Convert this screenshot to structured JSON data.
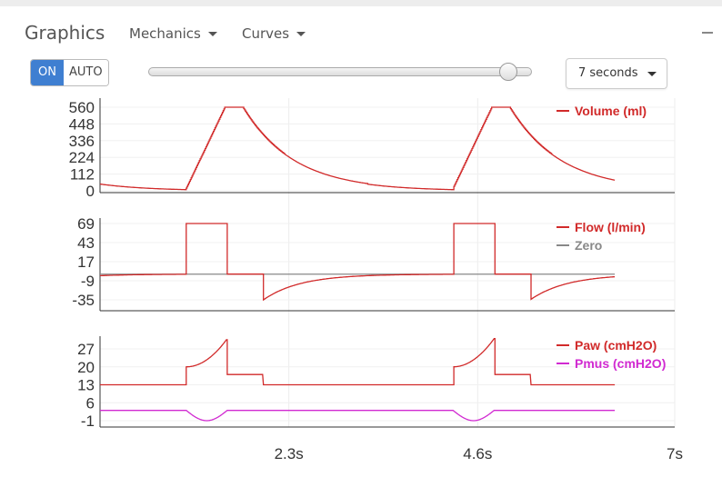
{
  "header": {
    "title": "Graphics",
    "menus": [
      "Mechanics",
      "Curves"
    ]
  },
  "controls": {
    "on_label": "ON",
    "auto_label": "AUTO",
    "slider_value_fraction": 0.94,
    "time_window": "7 seconds"
  },
  "colors": {
    "red": "#d12a2a",
    "gray": "#888888",
    "magenta": "#d12ad1",
    "on_button": "#3f7fd1"
  },
  "chart_data": [
    {
      "type": "line",
      "yticks": [
        560,
        448,
        336,
        224,
        112,
        0
      ],
      "ylim": [
        0,
        560
      ],
      "series": [
        {
          "name": "Volume (ml)",
          "color": "#d12a2a"
        }
      ]
    },
    {
      "type": "line",
      "yticks": [
        69,
        43,
        17,
        -9,
        -35
      ],
      "ylim": [
        -50,
        75
      ],
      "series": [
        {
          "name": "Flow (l/min)",
          "color": "#d12a2a"
        },
        {
          "name": "Zero",
          "color": "#888888"
        }
      ]
    },
    {
      "type": "line",
      "yticks": [
        27,
        20,
        13,
        6,
        -1
      ],
      "ylim": [
        -6,
        32
      ],
      "series": [
        {
          "name": "Paw (cmH2O)",
          "color": "#d12a2a"
        },
        {
          "name": "Pmus (cmH2O)",
          "color": "#d12ad1"
        }
      ]
    }
  ],
  "x_axis": {
    "ticks": [
      "2.3s",
      "4.6s",
      "7s"
    ],
    "xlim": [
      0,
      7
    ]
  }
}
